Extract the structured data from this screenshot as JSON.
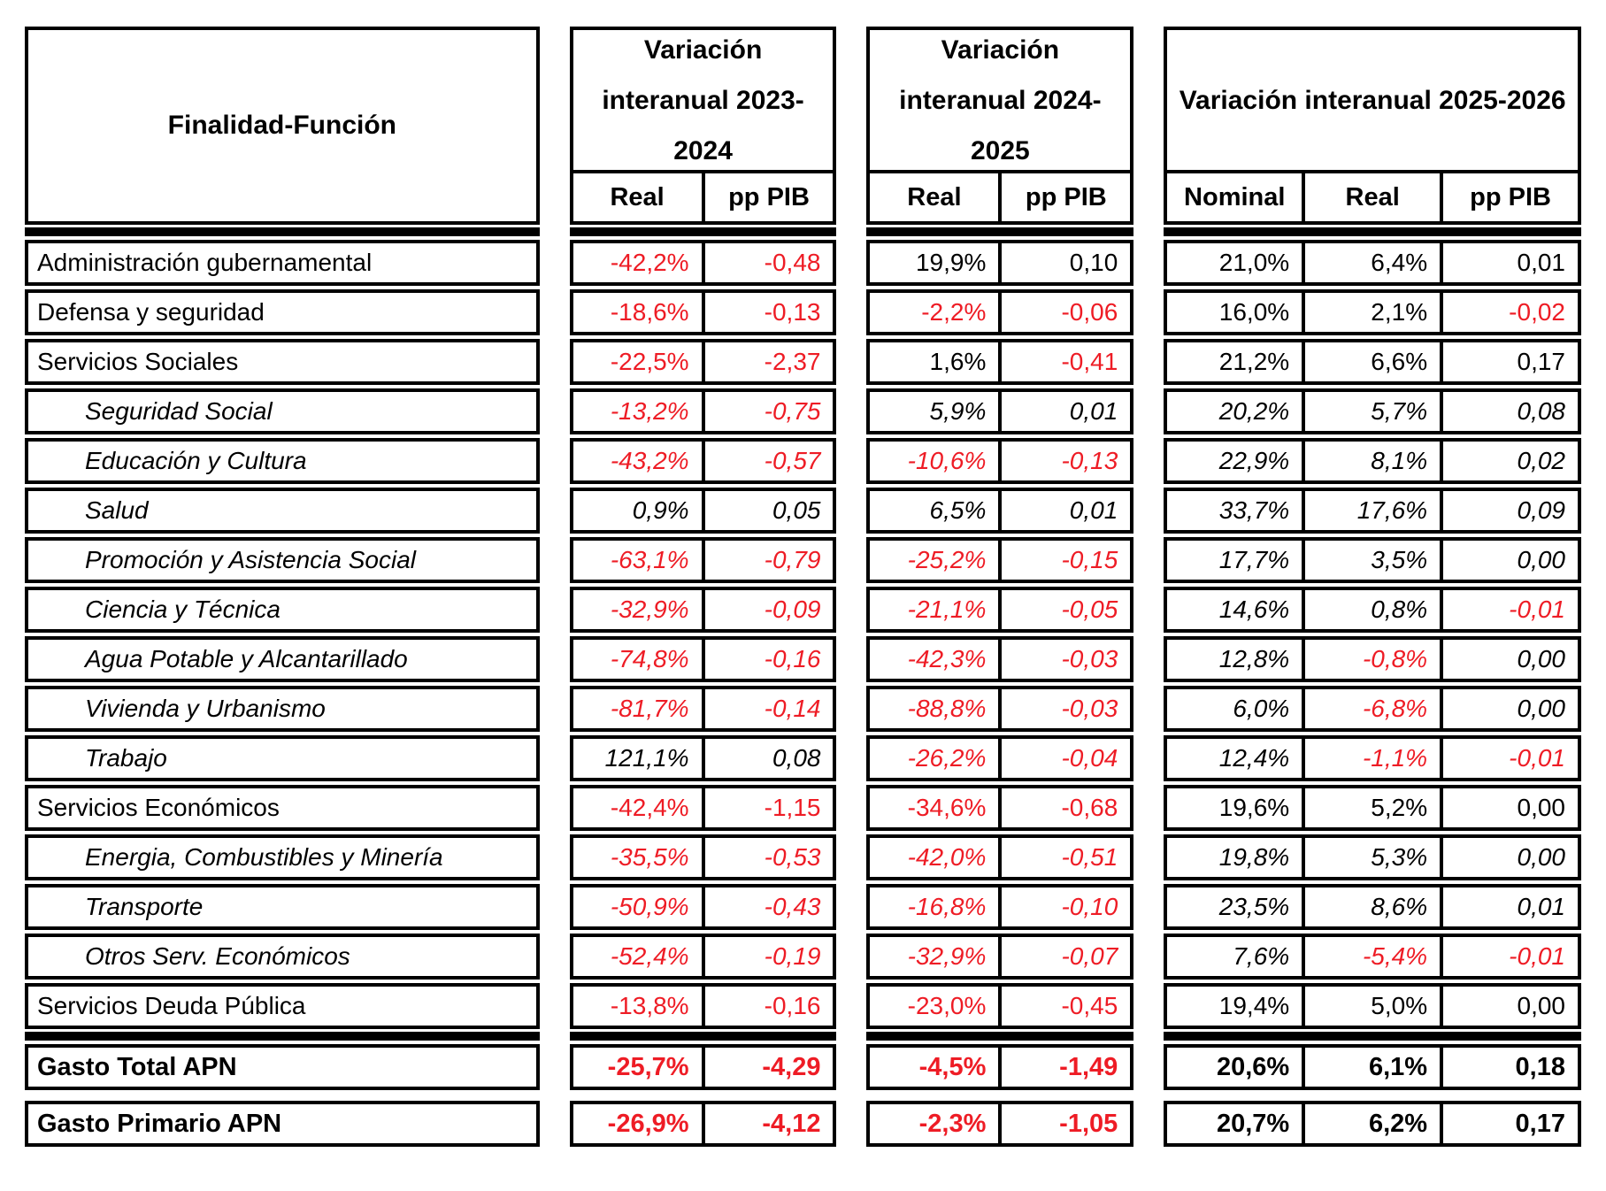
{
  "finalidad_header": "Finalidad-Función",
  "column_groups": [
    {
      "title": "Variación interanual 2023-2024",
      "columns": [
        "Real",
        "pp PIB"
      ]
    },
    {
      "title": "Variación interanual 2024-2025",
      "columns": [
        "Real",
        "pp PIB"
      ]
    },
    {
      "title": "Variación interanual 2025-2026",
      "columns": [
        "Nominal",
        "Real",
        "pp PIB"
      ]
    }
  ],
  "rows": [
    {
      "label": "Administración gubernamental",
      "level": "main",
      "values": [
        "-42,2%",
        "-0,48",
        "19,9%",
        "0,10",
        "21,0%",
        "6,4%",
        "0,01"
      ]
    },
    {
      "label": "Defensa y seguridad",
      "level": "main",
      "values": [
        "-18,6%",
        "-0,13",
        "-2,2%",
        "-0,06",
        "16,0%",
        "2,1%",
        "-0,02"
      ]
    },
    {
      "label": "Servicios Sociales",
      "level": "main",
      "values": [
        "-22,5%",
        "-2,37",
        "1,6%",
        "-0,41",
        "21,2%",
        "6,6%",
        "0,17"
      ]
    },
    {
      "label": "Seguridad Social",
      "level": "sub",
      "values": [
        "-13,2%",
        "-0,75",
        "5,9%",
        "0,01",
        "20,2%",
        "5,7%",
        "0,08"
      ]
    },
    {
      "label": "Educación y Cultura",
      "level": "sub",
      "values": [
        "-43,2%",
        "-0,57",
        "-10,6%",
        "-0,13",
        "22,9%",
        "8,1%",
        "0,02"
      ]
    },
    {
      "label": "Salud",
      "level": "sub",
      "values": [
        "0,9%",
        "0,05",
        "6,5%",
        "0,01",
        "33,7%",
        "17,6%",
        "0,09"
      ]
    },
    {
      "label": "Promoción y Asistencia Social",
      "level": "sub",
      "values": [
        "-63,1%",
        "-0,79",
        "-25,2%",
        "-0,15",
        "17,7%",
        "3,5%",
        "0,00"
      ]
    },
    {
      "label": "Ciencia y Técnica",
      "level": "sub",
      "values": [
        "-32,9%",
        "-0,09",
        "-21,1%",
        "-0,05",
        "14,6%",
        "0,8%",
        "-0,01"
      ]
    },
    {
      "label": "Agua Potable y Alcantarillado",
      "level": "sub",
      "values": [
        "-74,8%",
        "-0,16",
        "-42,3%",
        "-0,03",
        "12,8%",
        "-0,8%",
        "0,00"
      ]
    },
    {
      "label": "Vivienda y Urbanismo",
      "level": "sub",
      "values": [
        "-81,7%",
        "-0,14",
        "-88,8%",
        "-0,03",
        "6,0%",
        "-6,8%",
        "0,00"
      ]
    },
    {
      "label": "Trabajo",
      "level": "sub",
      "values": [
        "121,1%",
        "0,08",
        "-26,2%",
        "-0,04",
        "12,4%",
        "-1,1%",
        "-0,01"
      ]
    },
    {
      "label": "Servicios Económicos",
      "level": "main",
      "values": [
        "-42,4%",
        "-1,15",
        "-34,6%",
        "-0,68",
        "19,6%",
        "5,2%",
        "0,00"
      ]
    },
    {
      "label": "Energia, Combustibles y Minería",
      "level": "sub",
      "values": [
        "-35,5%",
        "-0,53",
        "-42,0%",
        "-0,51",
        "19,8%",
        "5,3%",
        "0,00"
      ]
    },
    {
      "label": "Transporte",
      "level": "sub",
      "values": [
        "-50,9%",
        "-0,43",
        "-16,8%",
        "-0,10",
        "23,5%",
        "8,6%",
        "0,01"
      ]
    },
    {
      "label": "Otros Serv. Económicos",
      "level": "sub",
      "values": [
        "-52,4%",
        "-0,19",
        "-32,9%",
        "-0,07",
        "7,6%",
        "-5,4%",
        "-0,01"
      ]
    },
    {
      "label": "Servicios Deuda Pública",
      "level": "main",
      "values": [
        "-13,8%",
        "-0,16",
        "-23,0%",
        "-0,45",
        "19,4%",
        "5,0%",
        "0,00"
      ]
    }
  ],
  "total_rows": [
    {
      "label": "Gasto Total APN",
      "values": [
        "-25,7%",
        "-4,29",
        "-4,5%",
        "-1,49",
        "20,6%",
        "6,1%",
        "0,18"
      ]
    },
    {
      "label": "Gasto Primario APN",
      "values": [
        "-26,9%",
        "-4,12",
        "-2,3%",
        "-1,05",
        "20,7%",
        "6,2%",
        "0,17"
      ]
    }
  ],
  "colors": {
    "negative_value": "#ee1c25",
    "positive_value": "#000000",
    "border": "#000000",
    "background": "#ffffff"
  }
}
